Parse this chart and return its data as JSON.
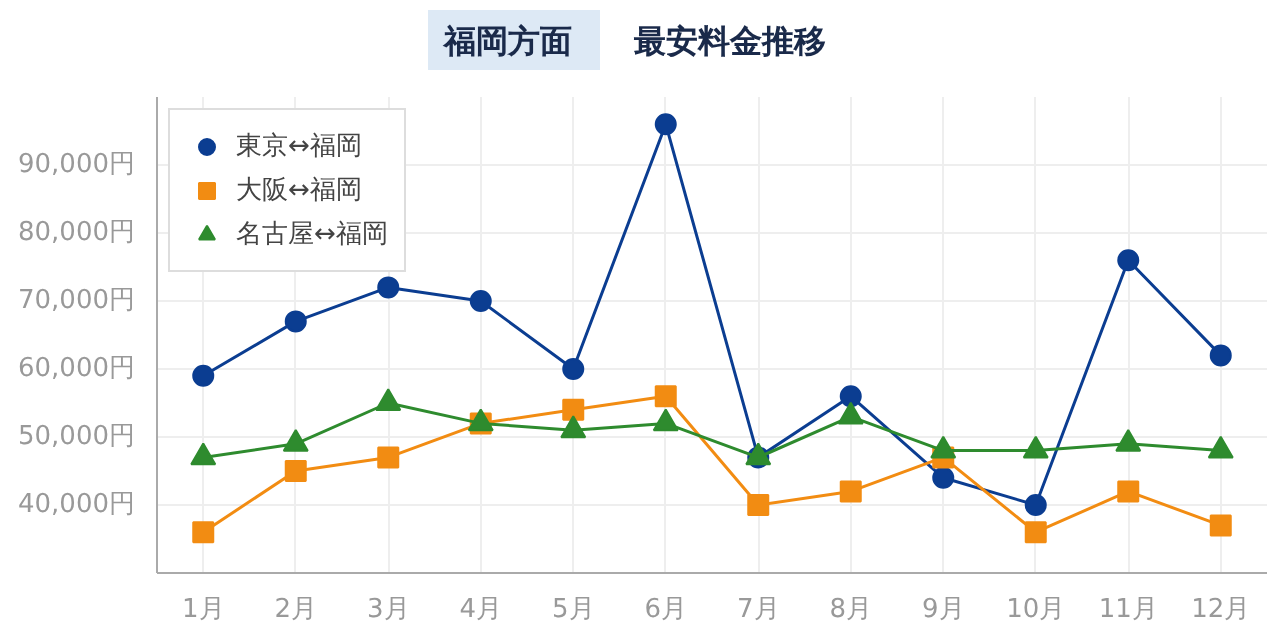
{
  "chart_data": {
    "type": "line",
    "title": "福岡方面",
    "subtitle": "最安料金推移",
    "categories": [
      "1月",
      "2月",
      "3月",
      "4月",
      "5月",
      "6月",
      "7月",
      "8月",
      "9月",
      "10月",
      "11月",
      "12月"
    ],
    "series": [
      {
        "name": "東京↔福岡",
        "color": "#0b3d91",
        "marker": "circle",
        "values": [
          59000,
          67000,
          72000,
          70000,
          60000,
          96000,
          47000,
          56000,
          44000,
          40000,
          76000,
          62000
        ]
      },
      {
        "name": "大阪↔福岡",
        "color": "#f28c12",
        "marker": "square",
        "values": [
          36000,
          45000,
          47000,
          52000,
          54000,
          56000,
          40000,
          42000,
          47000,
          36000,
          42000,
          37000
        ]
      },
      {
        "name": "名古屋↔福岡",
        "color": "#2e8b2e",
        "marker": "triangle",
        "values": [
          47000,
          49000,
          55000,
          52000,
          51000,
          52000,
          47000,
          53000,
          48000,
          48000,
          49000,
          48000
        ]
      }
    ],
    "ylim": [
      30000,
      100000
    ],
    "yticks": [
      {
        "value": 40000,
        "label": "40,000円"
      },
      {
        "value": 50000,
        "label": "50,000円"
      },
      {
        "value": 60000,
        "label": "60,000円"
      },
      {
        "value": 70000,
        "label": "70,000円"
      },
      {
        "value": 80000,
        "label": "80,000円"
      },
      {
        "value": 90000,
        "label": "90,000円"
      }
    ],
    "grid": true,
    "legend": "top left",
    "line_style": "solid"
  }
}
